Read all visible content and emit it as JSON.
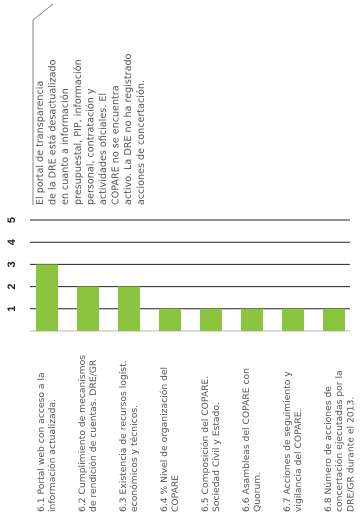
{
  "chart_data": {
    "type": "bar",
    "orientation": "rotated",
    "categories": [
      [
        "6.1 Portal web con acceso a la",
        "información actualizada."
      ],
      [
        "6.2 Cumplimiento de mecanismos",
        "de rendición de cuentas. DRE/GR"
      ],
      [
        "6.3 Existencia de recursos logíst.",
        "económicos y técnicos."
      ],
      [
        "6.4 % Nivel de organización del",
        "COPARE"
      ],
      [
        "6.5 Composición del COPARE.",
        "Sociedad Civil y Estado."
      ],
      [
        "6.6 Asambleas del COPARE con",
        "Quorum."
      ],
      [
        "6.7 Acciones de seguimiento y",
        "vigilancia del COPARE."
      ],
      [
        "6.8 Número de acciones de",
        "concertación ejecutadas por la",
        "DRE/GR durante el 2013."
      ]
    ],
    "values": [
      3,
      2,
      2,
      1,
      1,
      1,
      1,
      1
    ],
    "ticks": [
      "1",
      "2",
      "3",
      "4",
      "5"
    ],
    "ylim": [
      0,
      5.6
    ],
    "bar_color": "#8bc53f",
    "grid": true,
    "annotation": [
      "El portal de transparencia",
      "de la DRE está desactualizado",
      "en cuanto a información",
      "presupuestal, PIP, información",
      "personal, contratación y",
      "actividades oficiales. El",
      "COPARE no se encuentra",
      "activo. La DRE no ha registrado",
      "acciones de concertación."
    ]
  }
}
